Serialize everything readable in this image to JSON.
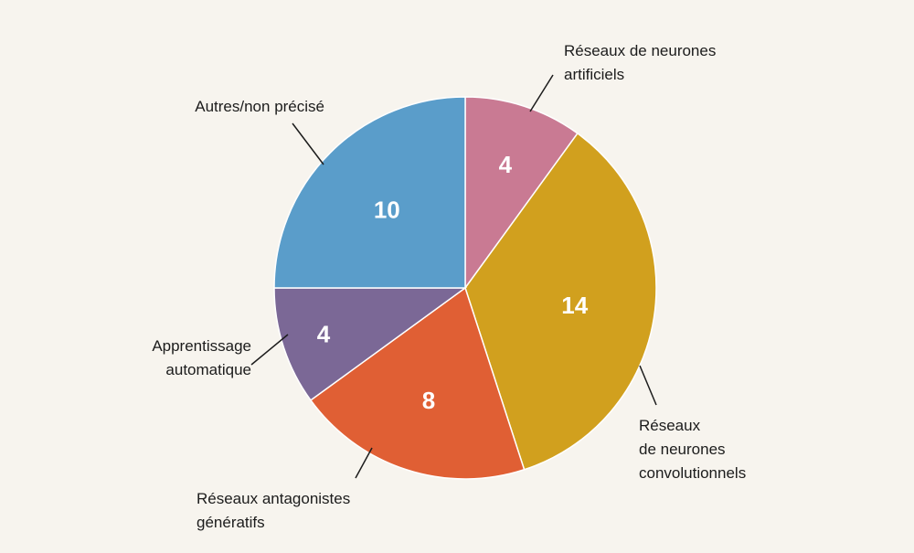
{
  "chart_data": {
    "type": "pie",
    "title": "",
    "start": "top",
    "direction": "clockwise",
    "slices": [
      {
        "label": "Réseaux de neurones artificiels",
        "label_lines": [
          "Réseaux de neurones",
          "artificiels"
        ],
        "value": 4,
        "value_text": "4",
        "color": "#c97a93"
      },
      {
        "label": "Réseaux de neurones convolutionnels",
        "label_lines": [
          "Réseaux",
          "de neurones",
          "convolutionnels"
        ],
        "value": 14,
        "value_text": "14",
        "color": "#d1a01e"
      },
      {
        "label": "Réseaux antagonistes génératifs",
        "label_lines": [
          "Réseaux antagonistes",
          "génératifs"
        ],
        "value": 8,
        "value_text": "8",
        "color": "#e05f34"
      },
      {
        "label": "Apprentissage automatique",
        "label_lines": [
          "Apprentissage",
          "automatique"
        ],
        "value": 4,
        "value_text": "4",
        "color": "#7b6896"
      },
      {
        "label": "Autres/non précisé",
        "label_lines": [
          "Autres/non précisé"
        ],
        "value": 10,
        "value_text": "10",
        "color": "#5a9dca"
      }
    ],
    "background": "#f7f4ee"
  }
}
